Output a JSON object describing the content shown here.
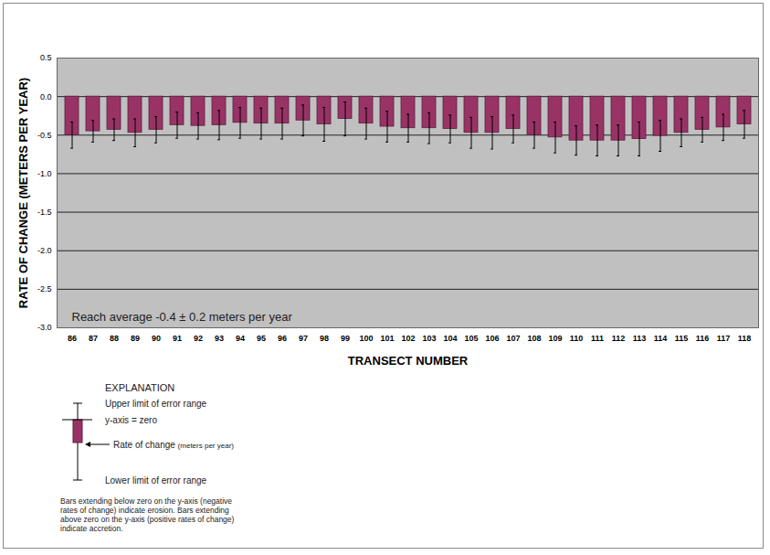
{
  "chart_data": {
    "type": "bar",
    "x_label": "TRANSECT NUMBER",
    "y_label": "RATE OF CHANGE (METERS PER YEAR)",
    "categories": [
      "86",
      "87",
      "88",
      "89",
      "90",
      "91",
      "92",
      "93",
      "94",
      "95",
      "96",
      "97",
      "98",
      "99",
      "100",
      "101",
      "102",
      "103",
      "104",
      "105",
      "106",
      "107",
      "108",
      "109",
      "110",
      "111",
      "112",
      "113",
      "114",
      "115",
      "116",
      "117",
      "118"
    ],
    "values": [
      -0.5,
      -0.45,
      -0.43,
      -0.47,
      -0.43,
      -0.37,
      -0.38,
      -0.37,
      -0.34,
      -0.35,
      -0.35,
      -0.31,
      -0.36,
      -0.29,
      -0.35,
      -0.39,
      -0.41,
      -0.41,
      -0.42,
      -0.47,
      -0.47,
      -0.42,
      -0.5,
      -0.53,
      -0.57,
      -0.57,
      -0.57,
      -0.55,
      -0.51,
      -0.47,
      -0.43,
      -0.4,
      -0.36
    ],
    "errors": [
      0.17,
      0.14,
      0.14,
      0.18,
      0.17,
      0.17,
      0.17,
      0.19,
      0.2,
      0.2,
      0.2,
      0.2,
      0.22,
      0.22,
      0.2,
      0.2,
      0.18,
      0.2,
      0.18,
      0.2,
      0.21,
      0.18,
      0.17,
      0.2,
      0.19,
      0.2,
      0.2,
      0.22,
      0.2,
      0.18,
      0.16,
      0.17,
      0.18
    ],
    "color": "#993366",
    "ylim": [
      -3.0,
      0.5
    ],
    "yticks": [
      0.5,
      {
        "value": 0.0,
        "label": "0.0"
      },
      -0.5,
      {
        "value": -1.0,
        "label": "-1.0"
      },
      -1.5,
      {
        "value": -2.0,
        "label": "-2.0"
      },
      -2.5,
      {
        "value": -3.0,
        "label": "-3.0"
      }
    ],
    "grid": true,
    "annotations": [
      "Reach average -0.4 ± 0.2 meters per year"
    ],
    "explanation": {
      "title": "EXPLANATION",
      "upper": "Upper limit of error range",
      "zero": "y-axis = zero",
      "rate_label": "Rate of change",
      "rate_unit": "(meters per year)",
      "lower": "Lower limit of error range",
      "note": [
        "Bars extending below zero on the y-axis (negative",
        "rates of change) indicate erosion. Bars extending",
        "above zero on the y-axis (positive rates of change)",
        "indicate accretion."
      ]
    }
  }
}
